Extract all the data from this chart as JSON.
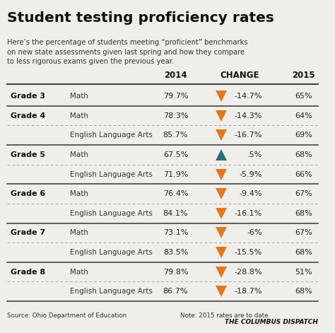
{
  "title": "Student testing proficiency rates",
  "subtitle": "Here’s the percentage of students meeting “proficient” benchmarks\non new state assessments given last spring and how they compare\nto less rigorous exams given the previous year.",
  "rows": [
    {
      "grade": "Grade 3",
      "subject": "Math",
      "val2014": "79.7%",
      "change": "-14.7%",
      "val2015": "65%",
      "arrow": "down"
    },
    {
      "grade": "Grade 4",
      "subject": "Math",
      "val2014": "78.3%",
      "change": "-14.3%",
      "val2015": "64%",
      "arrow": "down"
    },
    {
      "grade": "",
      "subject": "English Language Arts",
      "val2014": "85.7%",
      "change": "-16.7%",
      "val2015": "69%",
      "arrow": "down"
    },
    {
      "grade": "Grade 5",
      "subject": "Math",
      "val2014": "67.5%",
      "change": ".5%",
      "val2015": "68%",
      "arrow": "up"
    },
    {
      "grade": "",
      "subject": "English Language Arts",
      "val2014": "71.9%",
      "change": "-5.9%",
      "val2015": "66%",
      "arrow": "down"
    },
    {
      "grade": "Grade 6",
      "subject": "Math",
      "val2014": "76.4%",
      "change": "-9.4%",
      "val2015": "67%",
      "arrow": "down"
    },
    {
      "grade": "",
      "subject": "English Language Arts",
      "val2014": "84.1%",
      "change": "-16.1%",
      "val2015": "68%",
      "arrow": "down"
    },
    {
      "grade": "Grade 7",
      "subject": "Math",
      "val2014": "73.1%",
      "change": "-6%",
      "val2015": "67%",
      "arrow": "down"
    },
    {
      "grade": "",
      "subject": "English Language Arts",
      "val2014": "83.5%",
      "change": "-15.5%",
      "val2015": "68%",
      "arrow": "down"
    },
    {
      "grade": "Grade 8",
      "subject": "Math",
      "val2014": "79.8%",
      "change": "-28.8%",
      "val2015": "51%",
      "arrow": "down"
    },
    {
      "grade": "",
      "subject": "English Language Arts",
      "val2014": "86.7%",
      "change": "-18.7%",
      "val2015": "68%",
      "arrow": "down"
    }
  ],
  "footer_left": "Source: Ohio Department of Education",
  "footer_right": "Note: 2015 rates are to date.",
  "footer_brand": "THE COLUMBUS DISPATCH",
  "bg_color": "#f0eeea",
  "thick_line_color": "#444444",
  "dash_line_color": "#aaaaaa",
  "orange_arrow": "#e07820",
  "teal_arrow": "#2a6e7a",
  "title_color": "#111111",
  "subtitle_color": "#333333",
  "grade_bold_color": "#111111",
  "subject_color": "#333333",
  "data_color": "#222222",
  "grade_start_rows": [
    0,
    1,
    3,
    5,
    7,
    9
  ]
}
